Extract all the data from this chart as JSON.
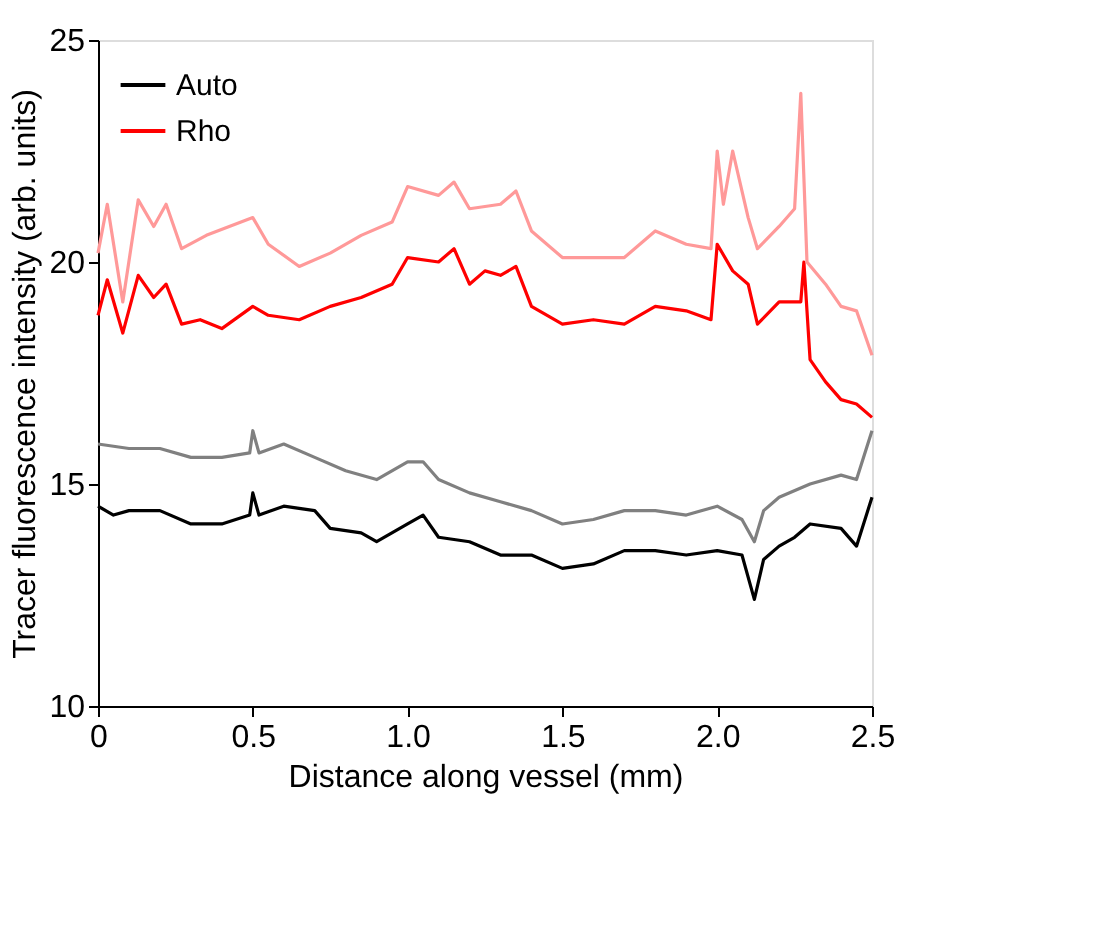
{
  "chart_data": {
    "type": "line",
    "xlabel": "Distance along vessel (mm)",
    "ylabel": "Tracer fluorescence intensity (arb. units)",
    "xlim": [
      0,
      2.5
    ],
    "ylim": [
      10,
      25
    ],
    "xticks": [
      0,
      0.5,
      {
        "value": 1,
        "label": "1.0"
      },
      1.5,
      {
        "value": 2,
        "label": "2.0"
      },
      2.5
    ],
    "yticks": [
      10,
      15,
      20,
      25
    ],
    "grid": false,
    "legend": "top left",
    "series": [
      {
        "name": "Auto",
        "color": "#000000",
        "x": [
          0,
          0.05,
          0.1,
          0.2,
          0.3,
          0.4,
          0.49,
          0.5,
          0.52,
          0.6,
          0.7,
          0.75,
          0.85,
          0.9,
          1.0,
          1.05,
          1.1,
          1.2,
          1.3,
          1.4,
          1.5,
          1.6,
          1.7,
          1.8,
          1.9,
          2.0,
          2.08,
          2.12,
          2.15,
          2.2,
          2.25,
          2.3,
          2.4,
          2.45,
          2.5
        ],
        "values": [
          14.5,
          14.3,
          14.4,
          14.4,
          14.1,
          14.1,
          14.3,
          14.8,
          14.3,
          14.5,
          14.4,
          14.0,
          13.9,
          13.7,
          14.1,
          14.3,
          13.8,
          13.7,
          13.4,
          13.4,
          13.1,
          13.2,
          13.5,
          13.5,
          13.4,
          13.5,
          13.4,
          12.4,
          13.3,
          13.6,
          13.8,
          14.1,
          14.0,
          13.6,
          14.7
        ]
      },
      {
        "name": "Rho",
        "color": "#ff0000",
        "x": [
          0,
          0.03,
          0.08,
          0.13,
          0.18,
          0.22,
          0.27,
          0.33,
          0.4,
          0.5,
          0.55,
          0.65,
          0.75,
          0.85,
          0.95,
          1.0,
          1.1,
          1.15,
          1.2,
          1.25,
          1.3,
          1.35,
          1.4,
          1.5,
          1.6,
          1.7,
          1.8,
          1.9,
          1.98,
          2.0,
          2.05,
          2.1,
          2.13,
          2.2,
          2.27,
          2.28,
          2.3,
          2.35,
          2.4,
          2.45,
          2.5
        ],
        "values": [
          18.8,
          19.6,
          18.4,
          19.7,
          19.2,
          19.5,
          18.6,
          18.7,
          18.5,
          19.0,
          18.8,
          18.7,
          19.0,
          19.2,
          19.5,
          20.1,
          20.0,
          20.3,
          19.5,
          19.8,
          19.7,
          19.9,
          19.0,
          18.6,
          18.7,
          18.6,
          19.0,
          18.9,
          18.7,
          20.4,
          19.8,
          19.5,
          18.6,
          19.1,
          19.1,
          20.0,
          17.8,
          17.3,
          16.9,
          16.8,
          16.5
        ]
      },
      {
        "color": "#808080",
        "x": [
          0,
          0.1,
          0.2,
          0.3,
          0.4,
          0.49,
          0.5,
          0.52,
          0.6,
          0.7,
          0.8,
          0.9,
          1.0,
          1.05,
          1.1,
          1.2,
          1.3,
          1.4,
          1.5,
          1.6,
          1.7,
          1.8,
          1.9,
          2.0,
          2.08,
          2.12,
          2.15,
          2.2,
          2.3,
          2.4,
          2.45,
          2.5
        ],
        "values": [
          15.9,
          15.8,
          15.8,
          15.6,
          15.6,
          15.7,
          16.2,
          15.7,
          15.9,
          15.6,
          15.3,
          15.1,
          15.5,
          15.5,
          15.1,
          14.8,
          14.6,
          14.4,
          14.1,
          14.2,
          14.4,
          14.4,
          14.3,
          14.5,
          14.2,
          13.7,
          14.4,
          14.7,
          15.0,
          15.2,
          15.1,
          16.2
        ]
      },
      {
        "color": "#ff9999",
        "x": [
          0,
          0.03,
          0.08,
          0.13,
          0.18,
          0.22,
          0.27,
          0.35,
          0.5,
          0.55,
          0.65,
          0.75,
          0.85,
          0.95,
          1.0,
          1.1,
          1.15,
          1.2,
          1.3,
          1.35,
          1.4,
          1.5,
          1.6,
          1.7,
          1.8,
          1.9,
          1.98,
          2.0,
          2.02,
          2.05,
          2.1,
          2.13,
          2.2,
          2.25,
          2.27,
          2.29,
          2.35,
          2.4,
          2.45,
          2.5
        ],
        "values": [
          20.2,
          21.3,
          19.1,
          21.4,
          20.8,
          21.3,
          20.3,
          20.6,
          21.0,
          20.4,
          19.9,
          20.2,
          20.6,
          20.9,
          21.7,
          21.5,
          21.8,
          21.2,
          21.3,
          21.6,
          20.7,
          20.1,
          20.1,
          20.1,
          20.7,
          20.4,
          20.3,
          22.5,
          21.3,
          22.5,
          21.0,
          20.3,
          20.8,
          21.2,
          23.8,
          20.0,
          19.5,
          19.0,
          18.9,
          17.9
        ]
      }
    ]
  }
}
